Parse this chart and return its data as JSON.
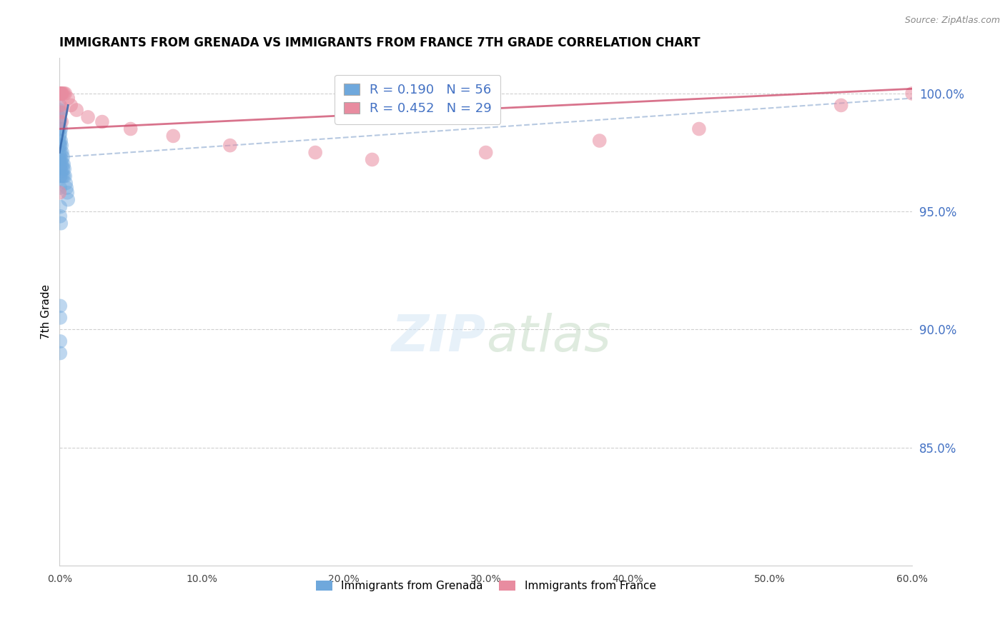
{
  "title": "IMMIGRANTS FROM GRENADA VS IMMIGRANTS FROM FRANCE 7TH GRADE CORRELATION CHART",
  "source": "Source: ZipAtlas.com",
  "ylabel": "7th Grade",
  "legend_label1": "Immigrants from Grenada",
  "legend_label2": "Immigrants from France",
  "R1": 0.19,
  "N1": 56,
  "R2": 0.452,
  "N2": 29,
  "color1": "#6fa8dc",
  "color2": "#e88ca0",
  "trendline1_color": "#3366aa",
  "trendline2_color": "#cc4466",
  "xmin": 0.0,
  "xmax": 60.0,
  "ymin": 80.0,
  "ymax": 101.5,
  "yticks": [
    85.0,
    90.0,
    95.0,
    100.0
  ],
  "xticks": [
    0.0,
    10.0,
    20.0,
    30.0,
    40.0,
    50.0,
    60.0
  ],
  "background_color": "#ffffff",
  "grid_color": "#bbbbbb",
  "scatter1_x": [
    0.0,
    0.0,
    0.0,
    0.0,
    0.0,
    0.0,
    0.0,
    0.0,
    0.0,
    0.0,
    0.0,
    0.0,
    0.0,
    0.0,
    0.0,
    0.0,
    0.0,
    0.0,
    0.0,
    0.0,
    0.05,
    0.05,
    0.05,
    0.05,
    0.05,
    0.05,
    0.05,
    0.05,
    0.1,
    0.1,
    0.1,
    0.1,
    0.1,
    0.15,
    0.15,
    0.15,
    0.2,
    0.2,
    0.2,
    0.25,
    0.25,
    0.3,
    0.3,
    0.35,
    0.4,
    0.45,
    0.5,
    0.55,
    0.6,
    0.05,
    0.05,
    0.1,
    0.05,
    0.05,
    0.05,
    0.05
  ],
  "scatter1_y": [
    100.0,
    100.0,
    100.0,
    100.0,
    100.0,
    100.0,
    100.0,
    100.0,
    100.0,
    100.0,
    99.5,
    99.3,
    99.0,
    98.8,
    98.5,
    98.2,
    98.0,
    97.8,
    97.5,
    97.2,
    99.2,
    98.8,
    98.3,
    97.8,
    97.3,
    96.9,
    96.5,
    96.0,
    98.5,
    98.0,
    97.5,
    97.0,
    96.5,
    97.8,
    97.2,
    96.7,
    97.5,
    97.0,
    96.5,
    97.3,
    96.8,
    97.0,
    96.5,
    96.8,
    96.5,
    96.2,
    96.0,
    95.8,
    95.5,
    95.2,
    94.8,
    94.5,
    91.0,
    90.5,
    89.5,
    89.0
  ],
  "scatter2_x": [
    0.0,
    0.0,
    0.0,
    0.05,
    0.05,
    0.1,
    0.15,
    0.2,
    0.3,
    0.4,
    0.6,
    0.8,
    1.2,
    2.0,
    3.0,
    5.0,
    8.0,
    12.0,
    18.0,
    22.0,
    30.0,
    38.0,
    45.0,
    55.0,
    60.0,
    0.05,
    0.1,
    0.15,
    0.0
  ],
  "scatter2_y": [
    100.0,
    100.0,
    100.0,
    100.0,
    100.0,
    100.0,
    100.0,
    100.0,
    100.0,
    100.0,
    99.8,
    99.5,
    99.3,
    99.0,
    98.8,
    98.5,
    98.2,
    97.8,
    97.5,
    97.2,
    97.5,
    98.0,
    98.5,
    99.5,
    100.0,
    99.5,
    99.2,
    98.8,
    95.8
  ],
  "trendline1_x0": 0.0,
  "trendline1_x1": 0.6,
  "trendline1_y0": 97.5,
  "trendline1_y1": 99.5,
  "trendline2_x0": 0.0,
  "trendline2_x1": 60.0,
  "trendline2_y0": 98.5,
  "trendline2_y1": 100.2
}
